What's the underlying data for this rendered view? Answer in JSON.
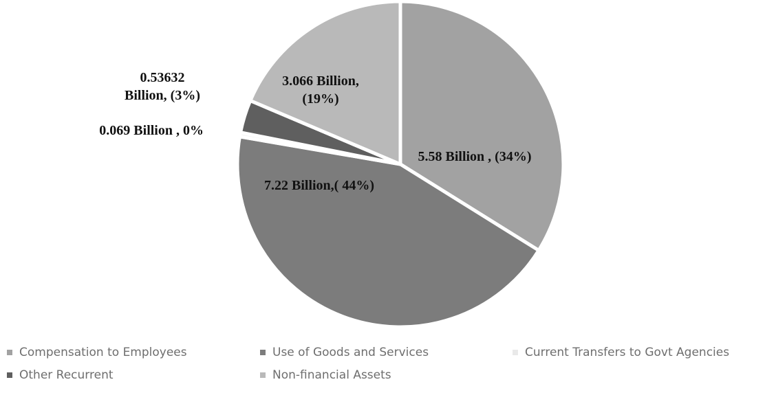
{
  "chart_data": {
    "type": "pie",
    "categories": [
      "Compensation to Employees",
      "Use of Goods and Services",
      "Current Transfers to Govt Agencies",
      "Other Recurrent",
      "Non-financial Assets"
    ],
    "values": [
      5.58,
      7.22,
      0.069,
      0.53632,
      3.066
    ],
    "value_unit": "Billion",
    "percent": [
      34,
      44,
      0,
      3,
      19
    ],
    "data_labels": [
      "5.58 Billion , (34%)",
      "7.22 Billion,( 44%)",
      "0.069 Billion , 0%",
      "0.53632 Billion, (3%)",
      "3.066 Billion, (19%)"
    ],
    "colors": [
      "#a2a2a2",
      "#7c7c7c",
      "#f4f4f4",
      "#5f5f5f",
      "#b9b9b9"
    ],
    "start_angle": "12 o'clock",
    "direction": "clockwise",
    "legend_position": "bottom"
  }
}
